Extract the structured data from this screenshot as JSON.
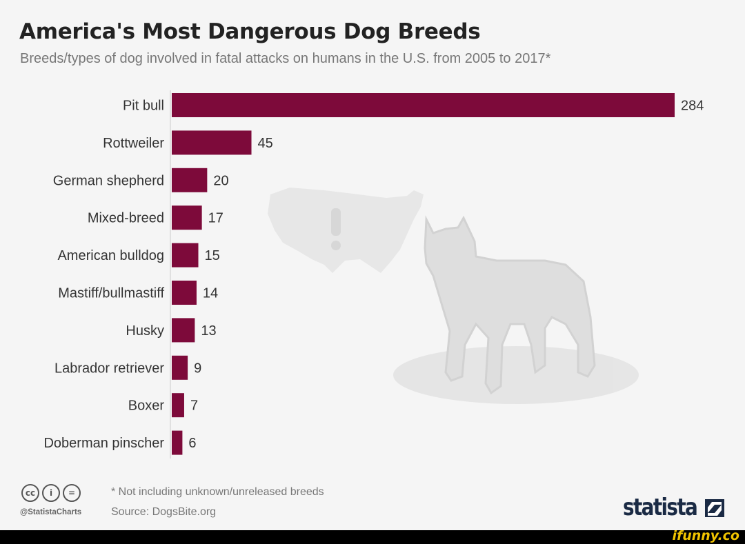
{
  "chart_data": {
    "type": "bar",
    "orientation": "horizontal",
    "title": "America's Most Dangerous Dog Breeds",
    "subtitle": "Breeds/types of dog involved in fatal attacks on humans in the U.S. from 2005 to 2017*",
    "categories": [
      "Pit bull",
      "Rottweiler",
      "German shepherd",
      "Mixed-breed",
      "American bulldog",
      "Mastiff/bullmastiff",
      "Husky",
      "Labrador retriever",
      "Boxer",
      "Doberman pinscher"
    ],
    "values": [
      284,
      45,
      20,
      17,
      15,
      14,
      13,
      9,
      7,
      6
    ],
    "xlim": [
      0,
      284
    ],
    "grid": false,
    "bar_color": "#7d0a3a"
  },
  "footer": {
    "note": "* Not including unknown/unreleased breeds",
    "source": "Source: DogsBite.org",
    "handle": "@StatistaCharts",
    "cc_icons": [
      "cc-icon",
      "attribution-icon",
      "no-derivatives-icon"
    ]
  },
  "brand": {
    "name": "statista",
    "watermark": "ifunny.co"
  }
}
